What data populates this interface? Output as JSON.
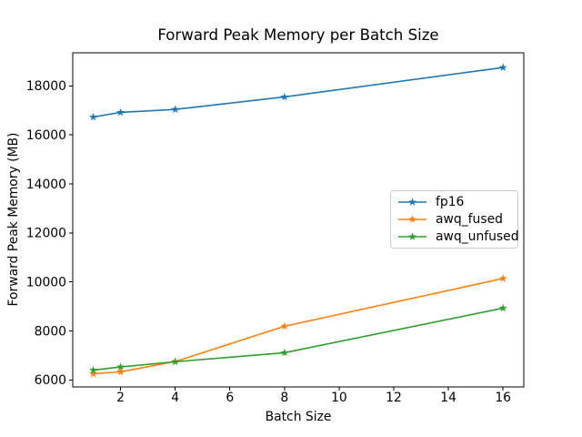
{
  "figure": {
    "background": "#ffffff",
    "text_color": "#000000",
    "axis_color": "#000000",
    "legend_border_color": "#cccccc"
  },
  "chart_data": {
    "type": "line",
    "title": "Forward Peak Memory per Batch Size",
    "xlabel": "Batch Size",
    "ylabel": "Forward Peak Memory (MB)",
    "x": [
      1,
      2,
      4,
      8,
      16
    ],
    "series": [
      {
        "name": "fp16",
        "color": "#1f77b4",
        "marker": "star",
        "values": [
          16730,
          16920,
          17040,
          17550,
          18750
        ]
      },
      {
        "name": "awq_fused",
        "color": "#ff7f0e",
        "marker": "star",
        "values": [
          6250,
          6330,
          6750,
          8190,
          10140
        ]
      },
      {
        "name": "awq_unfused",
        "color": "#2ca02c",
        "marker": "star",
        "values": [
          6400,
          6530,
          6740,
          7110,
          8930
        ]
      }
    ],
    "x_ticks": [
      2,
      4,
      6,
      8,
      10,
      12,
      14,
      16
    ],
    "y_ticks": [
      6000,
      8000,
      10000,
      12000,
      14000,
      16000,
      18000
    ],
    "xlim": [
      0.25,
      16.76
    ],
    "ylim": [
      5714,
      19351
    ],
    "grid": false,
    "legend_position": "center right"
  }
}
